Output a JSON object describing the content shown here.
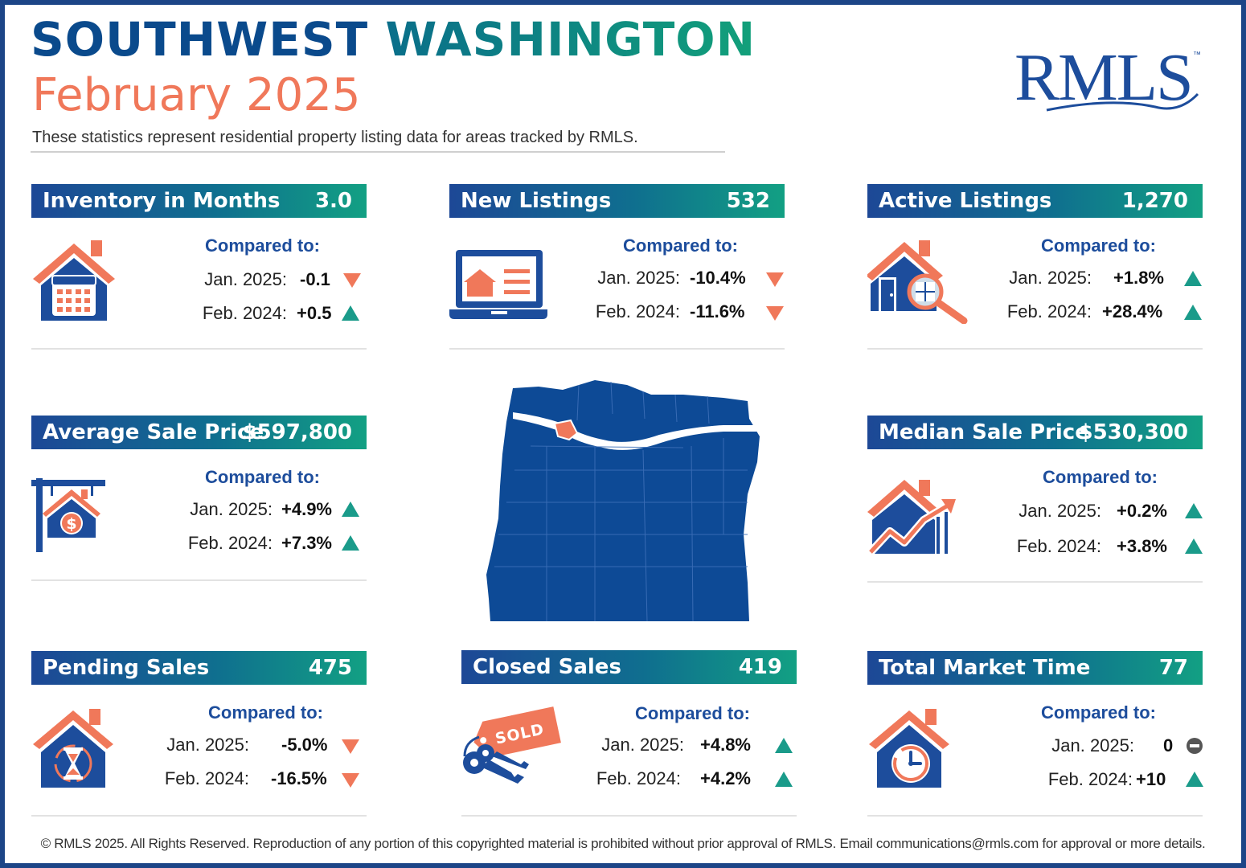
{
  "header": {
    "title_part1": "SOUTHWEST",
    "title_part2": "WASHINGTON",
    "period": "February 2025",
    "subtitle": "These statistics represent residential property listing data for areas tracked by RMLS."
  },
  "logo": {
    "text": "RMLS",
    "tm": "™"
  },
  "compared_label": "Compared to:",
  "colors": {
    "navy": "#1d4d9c",
    "teal": "#12a083",
    "coral": "#f0785a",
    "down_arrow": "#f0785a",
    "up_arrow": "#1a9b8a",
    "neutral": "#555555"
  },
  "cards": {
    "inventory": {
      "title": "Inventory in Months",
      "value": "3.0",
      "icon": "house-calendar-icon",
      "rows": [
        {
          "label": "Jan. 2025:",
          "value": "-0.1",
          "trend": "down"
        },
        {
          "label": "Feb. 2024:",
          "value": "+0.5",
          "trend": "up"
        }
      ]
    },
    "new_listings": {
      "title": "New Listings",
      "value": "532",
      "icon": "laptop-listing-icon",
      "rows": [
        {
          "label": "Jan. 2025:",
          "value": "-10.4%",
          "trend": "down"
        },
        {
          "label": "Feb. 2024:",
          "value": "-11.6%",
          "trend": "down"
        }
      ]
    },
    "active_listings": {
      "title": "Active Listings",
      "value": "1,270",
      "icon": "house-magnifier-icon",
      "rows": [
        {
          "label": "Jan. 2025:",
          "value": "+1.8%",
          "trend": "up"
        },
        {
          "label": "Feb. 2024:",
          "value": "+28.4%",
          "trend": "up"
        }
      ]
    },
    "avg_price": {
      "title": "Average Sale Price",
      "value": "$597,800",
      "icon": "house-sign-dollar-icon",
      "rows": [
        {
          "label": "Jan. 2025:",
          "value": "+4.9%",
          "trend": "up"
        },
        {
          "label": "Feb. 2024:",
          "value": "+7.3%",
          "trend": "up"
        }
      ]
    },
    "median_price": {
      "title": "Median Sale Price",
      "value": "$530,300",
      "icon": "house-growth-chart-icon",
      "rows": [
        {
          "label": "Jan. 2025:",
          "value": "+0.2%",
          "trend": "up"
        },
        {
          "label": "Feb. 2024:",
          "value": "+3.8%",
          "trend": "up"
        }
      ]
    },
    "pending": {
      "title": "Pending Sales",
      "value": "475",
      "icon": "house-hourglass-icon",
      "rows": [
        {
          "label": "Jan. 2025:",
          "value": "-5.0%",
          "trend": "down"
        },
        {
          "label": "Feb. 2024:",
          "value": "-16.5%",
          "trend": "down"
        }
      ]
    },
    "closed": {
      "title": "Closed Sales",
      "value": "419",
      "icon": "sold-tag-keys-icon",
      "sold_text": "SOLD",
      "rows": [
        {
          "label": "Jan. 2025:",
          "value": "+4.8%",
          "trend": "up"
        },
        {
          "label": "Feb. 2024:",
          "value": "+4.2%",
          "trend": "up"
        }
      ]
    },
    "market_time": {
      "title": "Total Market Time",
      "value": "77",
      "icon": "house-clock-icon",
      "rows": [
        {
          "label": "Jan. 2025:",
          "value": "0",
          "trend": "neutral"
        },
        {
          "label": "Feb. 2024:",
          "value": "+10",
          "trend": "up"
        }
      ]
    }
  },
  "map": {
    "icon": "oregon-washington-region-map",
    "highlight": "southwest-washington"
  },
  "footer": "© RMLS 2025. All Rights Reserved. Reproduction of any portion of this copyrighted material is prohibited without prior approval of RMLS. Email communications@rmls.com for approval or more details."
}
